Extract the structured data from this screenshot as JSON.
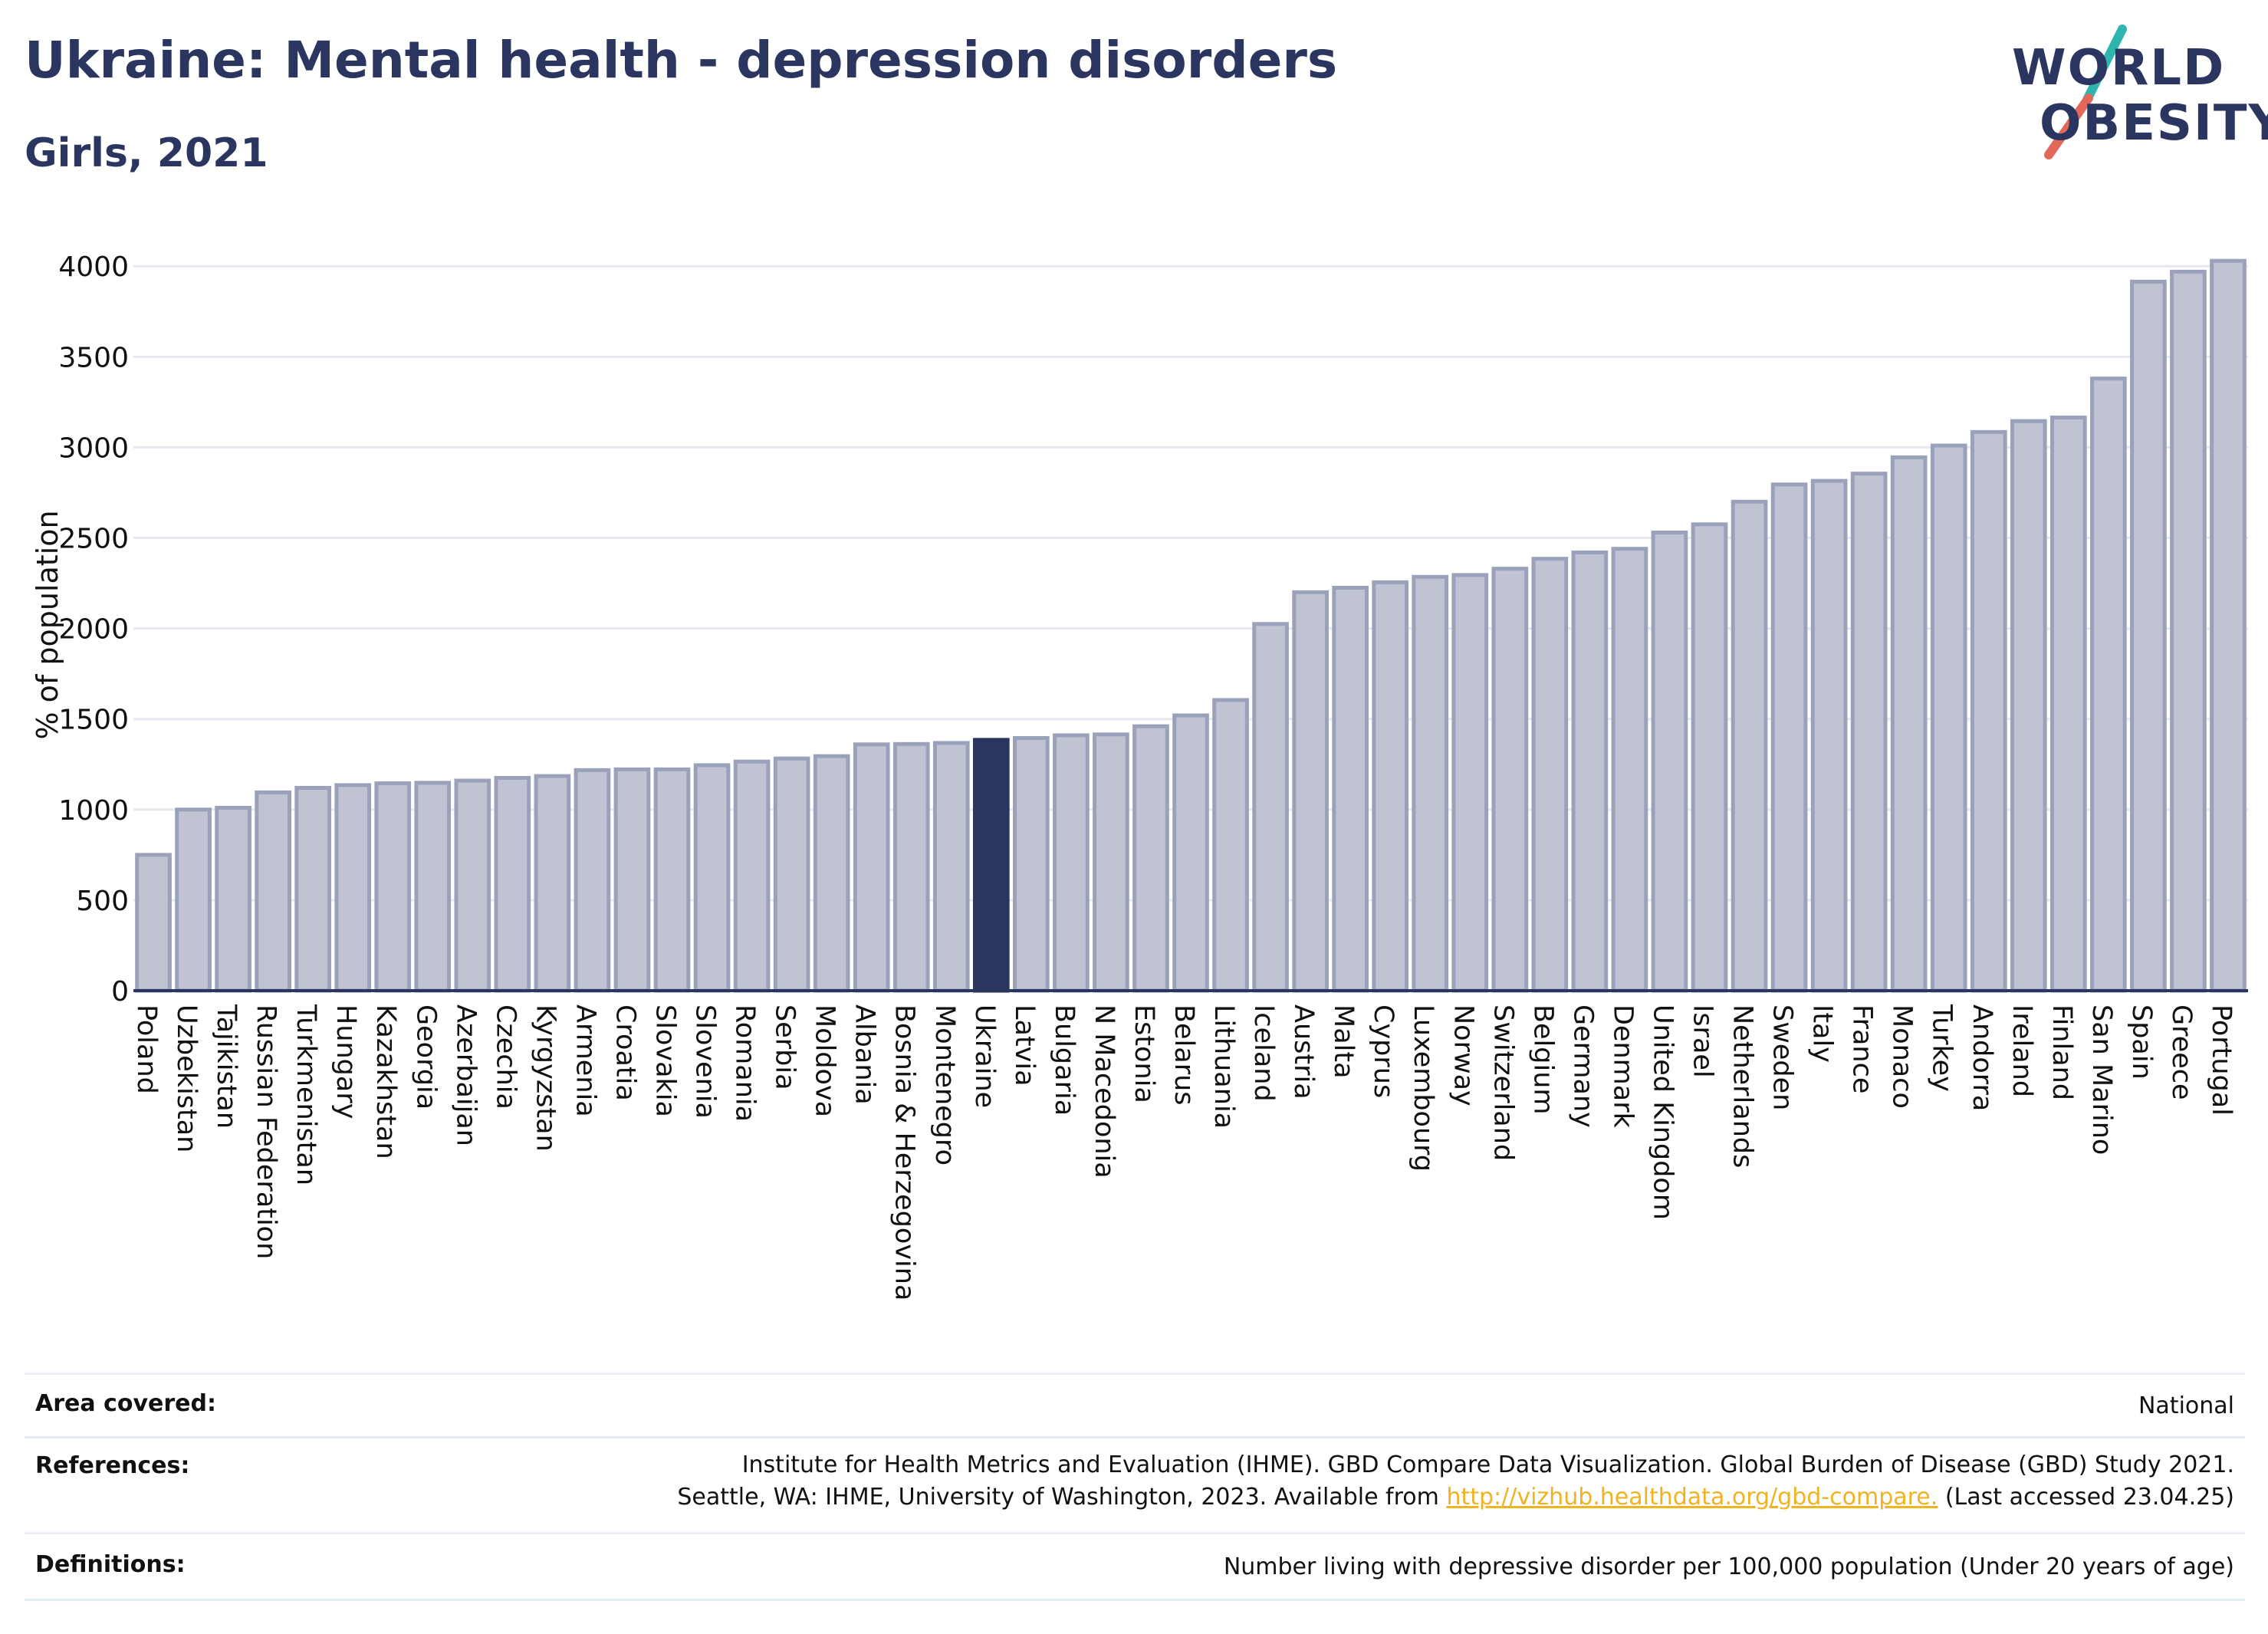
{
  "header": {
    "title": "Ukraine: Mental health - depression disorders",
    "subtitle": "Girls, 2021"
  },
  "logo": {
    "line1": "WORLD",
    "line2": "OBESITY",
    "slash_colors": [
      "#2fb5b0",
      "#e2695a"
    ]
  },
  "colors": {
    "bar": "#bfc3d2",
    "bar_stroke": "#9aa1bb",
    "highlight": "#2a3560",
    "grid": "#e6e8ef",
    "axis": "#2a3560",
    "text": "#111111"
  },
  "chart_data": {
    "type": "bar",
    "ylabel": "% of population",
    "ylim": [
      0,
      4200
    ],
    "yticks": [
      0,
      500,
      1000,
      1500,
      2000,
      2500,
      3000,
      3500,
      4000
    ],
    "grid": true,
    "highlight": "Ukraine",
    "categories": [
      "Poland",
      "Uzbekistan",
      "Tajikistan",
      "Russian Federation",
      "Turkmenistan",
      "Hungary",
      "Kazakhstan",
      "Georgia",
      "Azerbaijan",
      "Czechia",
      "Kyrgyzstan",
      "Armenia",
      "Croatia",
      "Slovakia",
      "Slovenia",
      "Romania",
      "Serbia",
      "Moldova",
      "Albania",
      "Bosnia & Herzegovina",
      "Montenegro",
      "Ukraine",
      "Latvia",
      "Bulgaria",
      "N Macedonia",
      "Estonia",
      "Belarus",
      "Lithuania",
      "Iceland",
      "Austria",
      "Malta",
      "Cyprus",
      "Luxembourg",
      "Norway",
      "Switzerland",
      "Belgium",
      "Germany",
      "Denmark",
      "United Kingdom",
      "Israel",
      "Netherlands",
      "Sweden",
      "Italy",
      "France",
      "Monaco",
      "Turkey",
      "Andorra",
      "Ireland",
      "Finland",
      "San Marino",
      "Spain",
      "Greece",
      "Portugal"
    ],
    "values": [
      750,
      1000,
      1010,
      1095,
      1120,
      1135,
      1145,
      1148,
      1160,
      1175,
      1185,
      1218,
      1222,
      1222,
      1245,
      1265,
      1282,
      1295,
      1360,
      1362,
      1368,
      1385,
      1395,
      1410,
      1415,
      1460,
      1520,
      1605,
      2025,
      2200,
      2225,
      2255,
      2285,
      2295,
      2330,
      2385,
      2420,
      2440,
      2530,
      2575,
      2700,
      2795,
      2815,
      2855,
      2945,
      3010,
      3085,
      3145,
      3165,
      3380,
      3915,
      3970,
      4030
    ]
  },
  "footer": {
    "area_label": "Area covered:",
    "area_value": "National",
    "references_label": "References:",
    "references_line1": "Institute for Health Metrics and Evaluation (IHME). GBD Compare Data Visualization. Global Burden of Disease (GBD) Study 2021.",
    "references_line2_prefix": "Seattle, WA: IHME, University of Washington, 2023. Available from",
    "references_link": "http://vizhub.healthdata.org/gbd-compare.",
    "references_line2_suffix": "(Last accessed 23.04.25)",
    "definitions_label": "Definitions:",
    "definitions_value": "Number living with depressive disorder per 100,000 population (Under 20 years of age)"
  }
}
